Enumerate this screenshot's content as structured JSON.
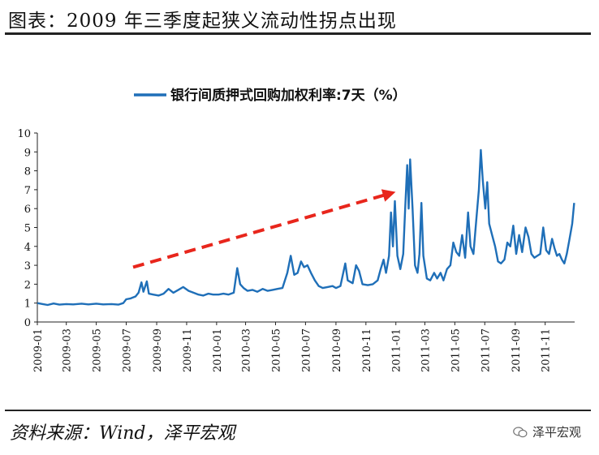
{
  "header": {
    "title": "图表：2009 年三季度起狭义流动性拐点出现"
  },
  "footer": {
    "source": "资料来源：Wind，泽平宏观",
    "brand": "泽平宏观"
  },
  "colors": {
    "series": "#1f6fb8",
    "arrow": "#e8261c",
    "axis": "#222222"
  },
  "chart_data": {
    "type": "line",
    "title": "",
    "xlabel": "",
    "ylabel": "",
    "ylim": [
      0,
      10
    ],
    "yticks": [
      0,
      1,
      2,
      3,
      4,
      5,
      6,
      7,
      8,
      9,
      10
    ],
    "xlim": [
      "2009-01",
      "2011-12"
    ],
    "xticks": [
      "2009-01",
      "2009-03",
      "2009-05",
      "2009-07",
      "2009-09",
      "2009-11",
      "2010-01",
      "2010-03",
      "2010-05",
      "2010-07",
      "2010-09",
      "2010-11",
      "2011-01",
      "2011-03",
      "2011-05",
      "2011-07",
      "2011-09",
      "2011-11"
    ],
    "legend": {
      "position": "top-center",
      "label": "银行间质押式回购加权利率:7天（%）"
    },
    "annotations": [
      {
        "type": "arrow",
        "style": "dashed",
        "from": [
          "2009-07-15",
          2.9
        ],
        "to": [
          "2010-12-20",
          6.8
        ]
      }
    ],
    "series": [
      {
        "name": "银行间质押式回购加权利率:7天（%）",
        "points": [
          [
            "2009-01-01",
            1.0
          ],
          [
            "2009-01-12",
            0.95
          ],
          [
            "2009-01-22",
            0.9
          ],
          [
            "2009-02-03",
            0.98
          ],
          [
            "2009-02-15",
            0.92
          ],
          [
            "2009-03-01",
            0.95
          ],
          [
            "2009-03-15",
            0.93
          ],
          [
            "2009-04-01",
            0.97
          ],
          [
            "2009-04-15",
            0.93
          ],
          [
            "2009-05-01",
            0.97
          ],
          [
            "2009-05-15",
            0.93
          ],
          [
            "2009-06-01",
            0.95
          ],
          [
            "2009-06-15",
            0.92
          ],
          [
            "2009-06-25",
            1.0
          ],
          [
            "2009-07-01",
            1.2
          ],
          [
            "2009-07-10",
            1.25
          ],
          [
            "2009-07-20",
            1.35
          ],
          [
            "2009-07-26",
            1.55
          ],
          [
            "2009-08-01",
            2.1
          ],
          [
            "2009-08-05",
            1.6
          ],
          [
            "2009-08-12",
            2.15
          ],
          [
            "2009-08-16",
            1.5
          ],
          [
            "2009-08-25",
            1.45
          ],
          [
            "2009-09-05",
            1.4
          ],
          [
            "2009-09-15",
            1.5
          ],
          [
            "2009-09-25",
            1.75
          ],
          [
            "2009-10-05",
            1.55
          ],
          [
            "2009-10-15",
            1.7
          ],
          [
            "2009-10-25",
            1.85
          ],
          [
            "2009-11-05",
            1.65
          ],
          [
            "2009-11-15",
            1.55
          ],
          [
            "2009-11-25",
            1.45
          ],
          [
            "2009-12-05",
            1.4
          ],
          [
            "2009-12-15",
            1.5
          ],
          [
            "2009-12-25",
            1.45
          ],
          [
            "2010-01-05",
            1.45
          ],
          [
            "2010-01-15",
            1.5
          ],
          [
            "2010-01-25",
            1.45
          ],
          [
            "2010-02-05",
            1.55
          ],
          [
            "2010-02-12",
            2.85
          ],
          [
            "2010-02-18",
            2.0
          ],
          [
            "2010-02-25",
            1.8
          ],
          [
            "2010-03-05",
            1.65
          ],
          [
            "2010-03-15",
            1.7
          ],
          [
            "2010-03-25",
            1.6
          ],
          [
            "2010-04-05",
            1.75
          ],
          [
            "2010-04-15",
            1.65
          ],
          [
            "2010-04-25",
            1.7
          ],
          [
            "2010-05-05",
            1.75
          ],
          [
            "2010-05-15",
            1.8
          ],
          [
            "2010-05-25",
            2.6
          ],
          [
            "2010-06-01",
            3.5
          ],
          [
            "2010-06-08",
            2.5
          ],
          [
            "2010-06-15",
            2.6
          ],
          [
            "2010-06-22",
            3.2
          ],
          [
            "2010-06-28",
            2.9
          ],
          [
            "2010-07-05",
            3.0
          ],
          [
            "2010-07-12",
            2.6
          ],
          [
            "2010-07-20",
            2.2
          ],
          [
            "2010-07-28",
            1.9
          ],
          [
            "2010-08-05",
            1.8
          ],
          [
            "2010-08-15",
            1.85
          ],
          [
            "2010-08-25",
            1.9
          ],
          [
            "2010-09-01",
            1.8
          ],
          [
            "2010-09-10",
            1.9
          ],
          [
            "2010-09-20",
            3.1
          ],
          [
            "2010-09-25",
            2.2
          ],
          [
            "2010-10-05",
            2.05
          ],
          [
            "2010-10-12",
            3.0
          ],
          [
            "2010-10-18",
            2.7
          ],
          [
            "2010-10-25",
            2.0
          ],
          [
            "2010-11-05",
            1.95
          ],
          [
            "2010-11-15",
            2.0
          ],
          [
            "2010-11-25",
            2.2
          ],
          [
            "2010-12-01",
            2.8
          ],
          [
            "2010-12-07",
            3.3
          ],
          [
            "2010-12-12",
            2.6
          ],
          [
            "2010-12-18",
            3.5
          ],
          [
            "2010-12-22",
            5.8
          ],
          [
            "2010-12-26",
            4.0
          ],
          [
            "2010-12-30",
            6.4
          ],
          [
            "2011-01-04",
            3.5
          ],
          [
            "2011-01-10",
            2.8
          ],
          [
            "2011-01-16",
            3.6
          ],
          [
            "2011-01-20",
            6.0
          ],
          [
            "2011-01-24",
            8.3
          ],
          [
            "2011-01-27",
            6.0
          ],
          [
            "2011-01-30",
            8.6
          ],
          [
            "2011-02-04",
            6.0
          ],
          [
            "2011-02-09",
            3.0
          ],
          [
            "2011-02-14",
            2.6
          ],
          [
            "2011-02-18",
            3.6
          ],
          [
            "2011-02-22",
            6.3
          ],
          [
            "2011-02-26",
            3.5
          ],
          [
            "2011-03-05",
            2.3
          ],
          [
            "2011-03-12",
            2.2
          ],
          [
            "2011-03-20",
            2.6
          ],
          [
            "2011-03-26",
            2.3
          ],
          [
            "2011-04-02",
            2.6
          ],
          [
            "2011-04-08",
            2.2
          ],
          [
            "2011-04-15",
            2.8
          ],
          [
            "2011-04-22",
            3.0
          ],
          [
            "2011-04-28",
            4.2
          ],
          [
            "2011-05-04",
            3.7
          ],
          [
            "2011-05-10",
            3.5
          ],
          [
            "2011-05-16",
            4.6
          ],
          [
            "2011-05-22",
            3.4
          ],
          [
            "2011-05-28",
            5.8
          ],
          [
            "2011-06-02",
            4.0
          ],
          [
            "2011-06-08",
            3.6
          ],
          [
            "2011-06-14",
            5.5
          ],
          [
            "2011-06-19",
            7.0
          ],
          [
            "2011-06-23",
            9.1
          ],
          [
            "2011-06-27",
            7.5
          ],
          [
            "2011-07-02",
            6.0
          ],
          [
            "2011-07-06",
            7.4
          ],
          [
            "2011-07-10",
            5.2
          ],
          [
            "2011-07-16",
            4.6
          ],
          [
            "2011-07-22",
            4.0
          ],
          [
            "2011-07-28",
            3.2
          ],
          [
            "2011-08-03",
            3.1
          ],
          [
            "2011-08-10",
            3.3
          ],
          [
            "2011-08-16",
            4.2
          ],
          [
            "2011-08-22",
            4.0
          ],
          [
            "2011-08-28",
            5.1
          ],
          [
            "2011-09-03",
            3.6
          ],
          [
            "2011-09-09",
            4.6
          ],
          [
            "2011-09-15",
            3.7
          ],
          [
            "2011-09-22",
            5.0
          ],
          [
            "2011-09-28",
            4.5
          ],
          [
            "2011-10-04",
            3.6
          ],
          [
            "2011-10-10",
            3.4
          ],
          [
            "2011-10-16",
            3.5
          ],
          [
            "2011-10-22",
            3.6
          ],
          [
            "2011-10-28",
            5.0
          ],
          [
            "2011-11-03",
            3.8
          ],
          [
            "2011-11-09",
            3.6
          ],
          [
            "2011-11-15",
            4.4
          ],
          [
            "2011-11-20",
            3.9
          ],
          [
            "2011-11-25",
            3.5
          ],
          [
            "2011-11-30",
            3.6
          ],
          [
            "2011-12-05",
            3.3
          ],
          [
            "2011-12-10",
            3.1
          ],
          [
            "2011-12-15",
            3.6
          ],
          [
            "2011-12-20",
            4.3
          ],
          [
            "2011-12-26",
            5.2
          ],
          [
            "2011-12-30",
            6.3
          ]
        ]
      }
    ]
  }
}
